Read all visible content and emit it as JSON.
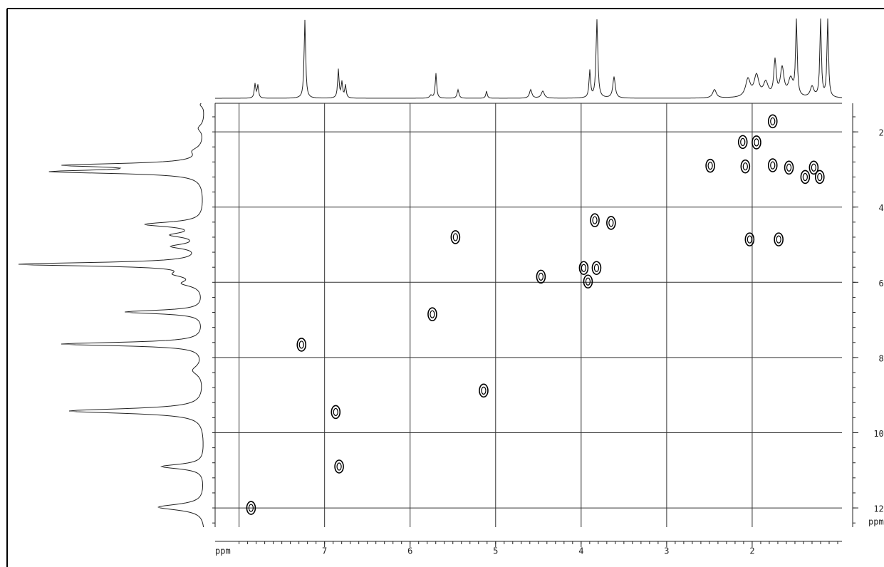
{
  "chart_data": {
    "type": "scatter",
    "x_label": "ppm",
    "y_label": "ppm",
    "x": [
      1.76,
      2.11,
      1.95,
      2.49,
      2.08,
      1.76,
      1.57,
      1.38,
      1.28,
      1.21,
      3.84,
      3.65,
      5.47,
      2.03,
      1.69,
      3.82,
      3.97,
      3.92,
      4.47,
      5.74,
      7.27,
      5.14,
      6.87,
      6.83,
      7.86
    ],
    "values": [
      17.2,
      22.7,
      22.8,
      29.0,
      29.2,
      28.9,
      29.5,
      32.0,
      29.5,
      32.0,
      43.5,
      44.2,
      48.0,
      48.6,
      48.6,
      56.2,
      56.2,
      59.8,
      58.5,
      68.5,
      76.6,
      88.8,
      94.5,
      109.0,
      120.0
    ],
    "color": "#000000",
    "xlim": [
      8.28,
      0.95
    ],
    "ylim": [
      12.4,
      125.1
    ],
    "xticks": [
      7,
      6,
      5,
      4,
      3,
      2
    ],
    "yticks": [
      20,
      40,
      60,
      80,
      100,
      120
    ],
    "grid": true
  }
}
